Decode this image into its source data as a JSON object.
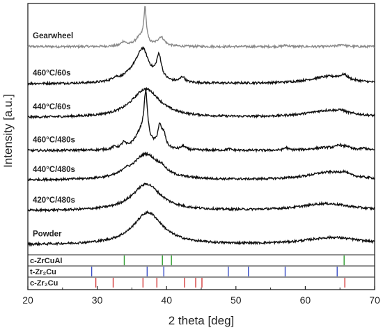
{
  "chart_data": {
    "type": "line",
    "xlabel": "2 theta [deg]",
    "ylabel": "Intensity [a.u.]",
    "xlim": [
      20,
      70
    ],
    "x_ticks": [
      "20",
      "30",
      "40",
      "50",
      "60",
      "70"
    ],
    "y_ticks_shown": false,
    "grid": false,
    "curves": [
      {
        "name": "Gearwheel",
        "color": "#8a8a8a",
        "offset": 5.45,
        "peaks": [
          [
            36.9,
            0.95,
            0.22
          ],
          [
            36.2,
            0.25,
            0.9
          ],
          [
            39.2,
            0.25,
            0.6
          ],
          [
            33.8,
            0.12,
            0.4
          ],
          [
            65.3,
            0.06,
            0.6
          ],
          [
            57.2,
            0.04,
            0.4
          ]
        ],
        "background": 0.15
      },
      {
        "name": "460°C/60s",
        "color": "#111111",
        "offset": 4.5,
        "peaks": [
          [
            36.6,
            0.75,
            1.0
          ],
          [
            38.9,
            0.65,
            0.45
          ],
          [
            35.5,
            0.3,
            1.8
          ],
          [
            42.3,
            0.15,
            0.4
          ],
          [
            32.6,
            0.08,
            0.6
          ],
          [
            65.6,
            0.12,
            0.6
          ],
          [
            63.5,
            0.2,
            3.5
          ]
        ],
        "background": 0.06
      },
      {
        "name": "440°C/60s",
        "color": "#111111",
        "offset": 3.55,
        "peaks": [
          [
            37.0,
            0.8,
            2.5
          ],
          [
            63.5,
            0.2,
            4.0
          ],
          [
            65.2,
            0.05,
            0.5
          ]
        ],
        "background": 0.06
      },
      {
        "name": "460°C/480s",
        "color": "#111111",
        "offset": 2.65,
        "peaks": [
          [
            37.0,
            1.25,
            0.3
          ],
          [
            36.4,
            0.5,
            1.2
          ],
          [
            39.0,
            0.55,
            0.35
          ],
          [
            39.6,
            0.35,
            0.35
          ],
          [
            33.8,
            0.15,
            0.35
          ],
          [
            32.5,
            0.07,
            0.4
          ],
          [
            42.4,
            0.1,
            0.4
          ],
          [
            57.2,
            0.07,
            0.35
          ],
          [
            49.0,
            0.04,
            0.4
          ],
          [
            64.9,
            0.1,
            0.5
          ],
          [
            66.0,
            0.08,
            0.5
          ],
          [
            68.5,
            0.05,
            0.6
          ],
          [
            63.0,
            0.08,
            2.5
          ]
        ],
        "background": 0.04
      },
      {
        "name": "440°C/480s",
        "color": "#111111",
        "offset": 1.8,
        "peaks": [
          [
            37.0,
            0.72,
            2.3
          ],
          [
            39.3,
            0.12,
            0.7
          ],
          [
            34.0,
            0.1,
            0.7
          ],
          [
            63.5,
            0.22,
            3.8
          ],
          [
            65.6,
            0.08,
            0.6
          ]
        ],
        "background": 0.06
      },
      {
        "name": "420°C/480s",
        "color": "#111111",
        "offset": 0.95,
        "peaks": [
          [
            37.1,
            0.75,
            2.5
          ],
          [
            63.0,
            0.2,
            4.5
          ]
        ],
        "background": 0.05
      },
      {
        "name": "Powder",
        "color": "#111111",
        "offset": 0.0,
        "peaks": [
          [
            37.3,
            0.9,
            2.6
          ],
          [
            64.0,
            0.2,
            5.0
          ]
        ],
        "background": 0.05
      }
    ],
    "reference_patterns": [
      {
        "name": "c-ZrCuAl",
        "color": "#2e9e2e",
        "positions": [
          33.9,
          39.4,
          40.7,
          65.6
        ]
      },
      {
        "name": "t-Zr₂Cu",
        "color": "#3a4fc7",
        "positions": [
          29.2,
          37.2,
          39.6,
          48.9,
          51.8,
          57.1,
          64.6
        ]
      },
      {
        "name": "c-Zr₂Cu",
        "color": "#d43a3a",
        "positions": [
          29.8,
          32.3,
          36.6,
          38.6,
          42.6,
          44.2,
          45.1,
          65.7
        ]
      }
    ]
  }
}
